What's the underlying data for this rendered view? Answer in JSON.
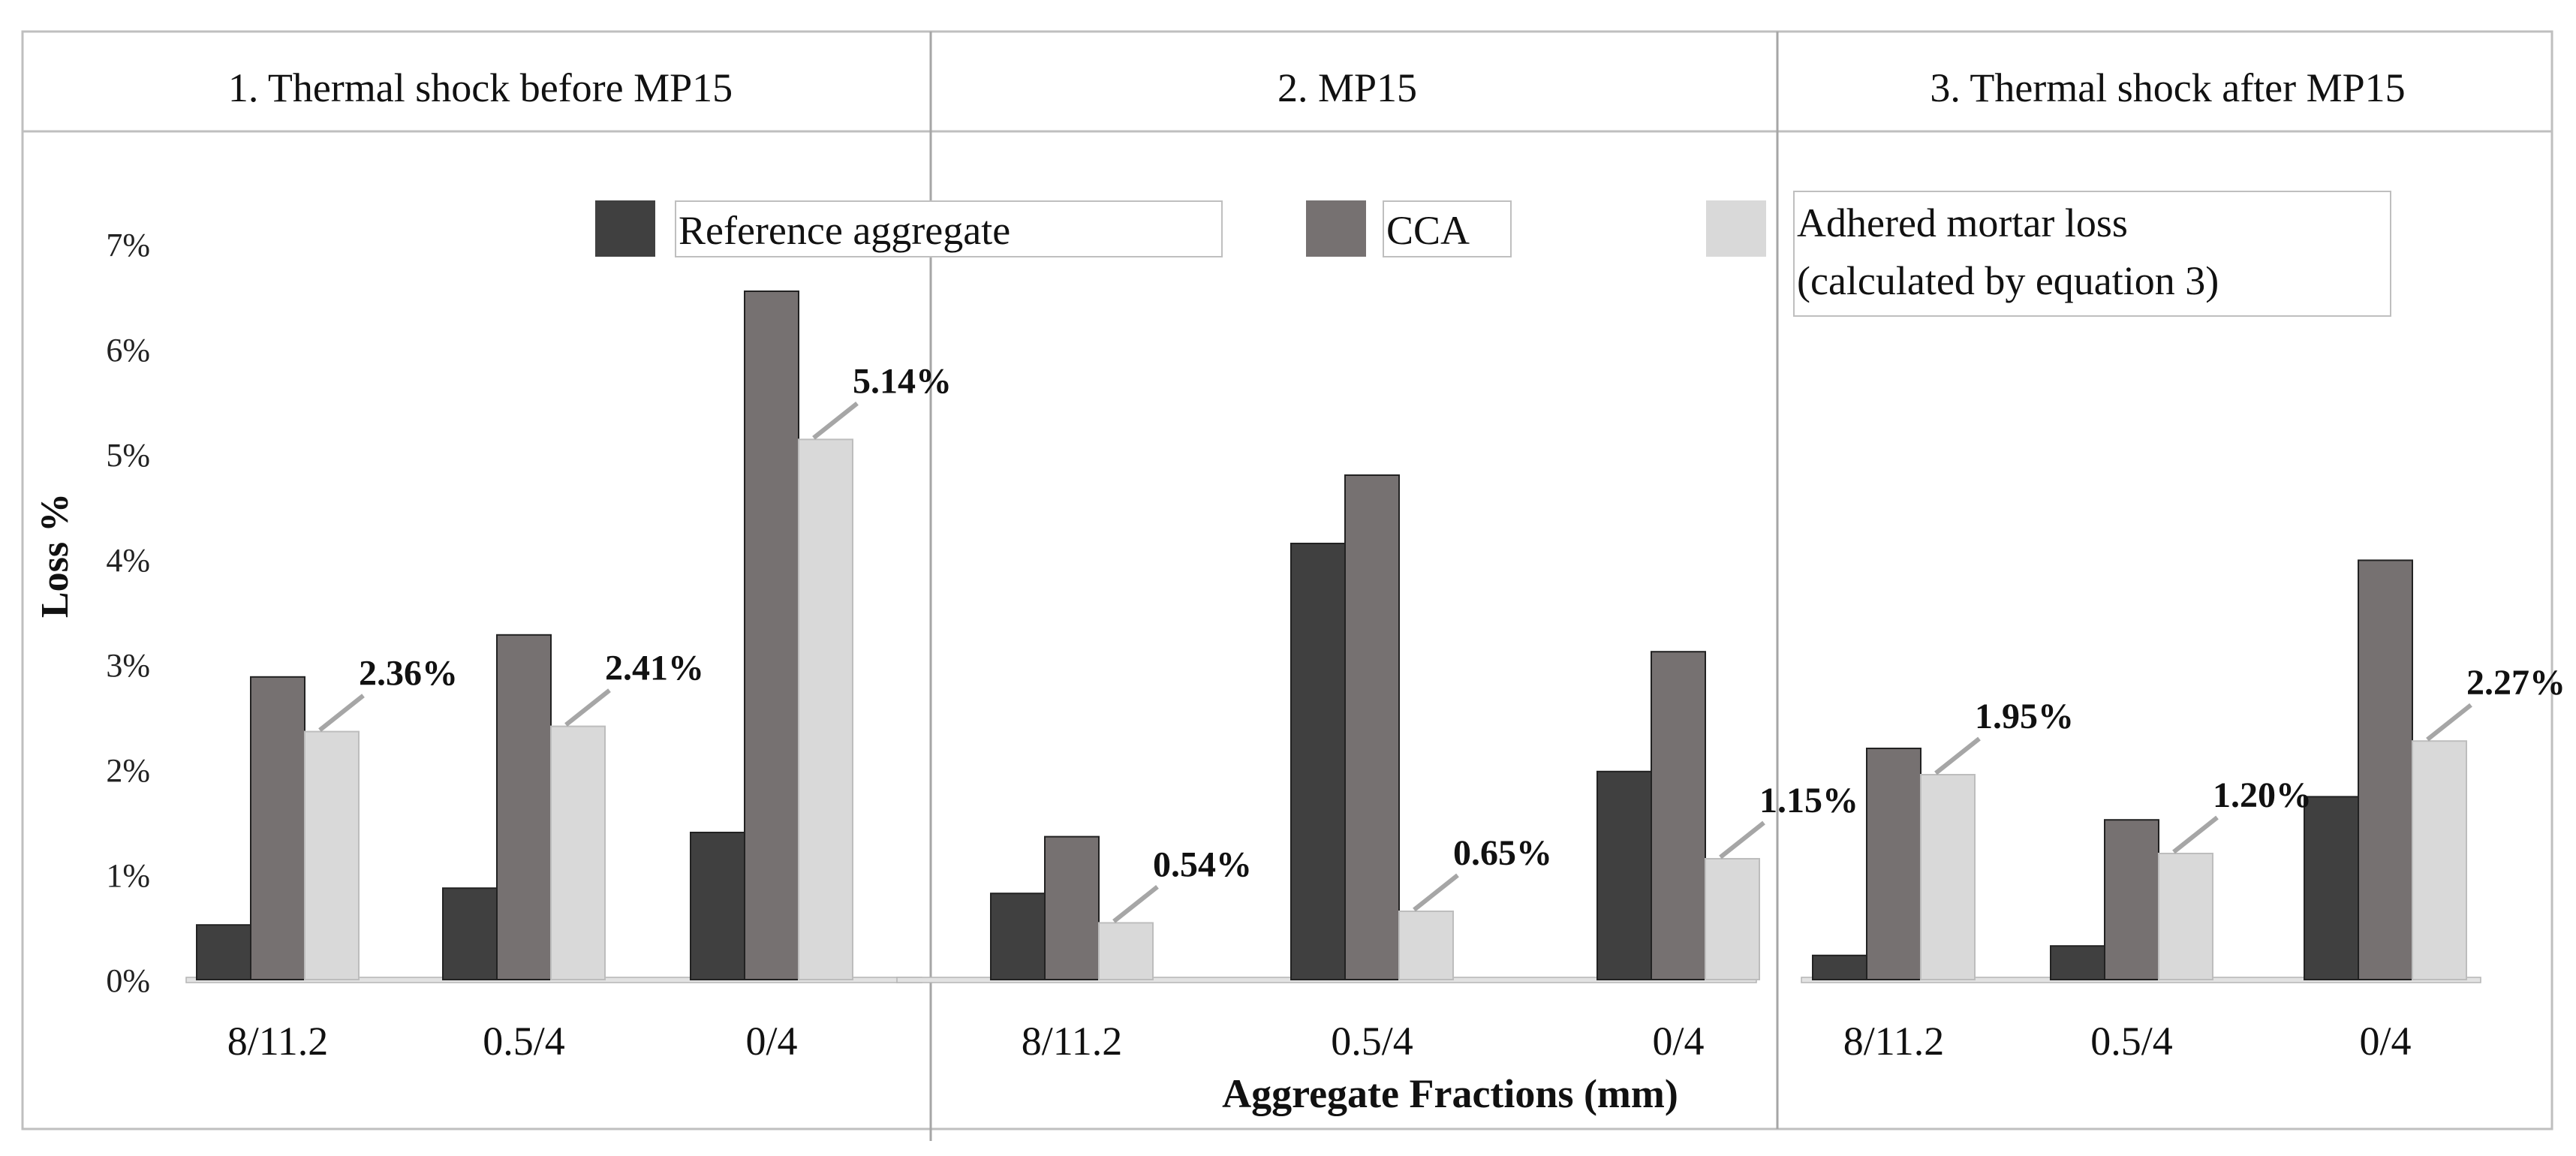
{
  "chart_data": {
    "type": "bar",
    "xlabel": "Aggregate Fractions (mm)",
    "ylabel": "Loss %",
    "ylim": [
      0,
      7
    ],
    "yticks": [
      "0%",
      "1%",
      "2%",
      "3%",
      "4%",
      "5%",
      "6%",
      "7%"
    ],
    "grid": false,
    "legend_position": "top",
    "series": [
      {
        "name": "Reference aggregate",
        "color": "#404040"
      },
      {
        "name": "CCA",
        "color": "#767171"
      },
      {
        "name": "Adhered mortar loss (calculated by equation 3)",
        "color": "#d9d9d9"
      }
    ],
    "legend_labels": {
      "reference": "Reference aggregate",
      "cca": "CCA",
      "mortar_line1": "Adhered mortar loss",
      "mortar_line2": "(calculated by equation 3)"
    },
    "panels": [
      {
        "title": "1. Thermal shock before MP15",
        "categories": [
          "8/11.2",
          "0.5/4",
          "0/4"
        ],
        "values": {
          "reference": [
            0.52,
            0.87,
            1.4
          ],
          "cca": [
            2.88,
            3.28,
            6.55
          ],
          "mortar": [
            2.36,
            2.41,
            5.14
          ]
        },
        "labels": [
          "2.36%",
          "2.41%",
          "5.14%"
        ]
      },
      {
        "title": "2. MP15",
        "categories": [
          "8/11.2",
          "0.5/4",
          "0/4"
        ],
        "values": {
          "reference": [
            0.82,
            4.15,
            1.98
          ],
          "cca": [
            1.36,
            4.8,
            3.12
          ],
          "mortar": [
            0.54,
            0.65,
            1.15
          ]
        },
        "labels": [
          "0.54%",
          "0.65%",
          "1.15%"
        ]
      },
      {
        "title": "3. Thermal shock after MP15",
        "categories": [
          "8/11.2",
          "0.5/4",
          "0/4"
        ],
        "values": {
          "reference": [
            0.23,
            0.32,
            1.74
          ],
          "cca": [
            2.2,
            1.52,
            3.99
          ],
          "mortar": [
            1.95,
            1.2,
            2.27
          ]
        },
        "labels": [
          "1.95%",
          "1.20%",
          "2.27%"
        ]
      }
    ]
  }
}
